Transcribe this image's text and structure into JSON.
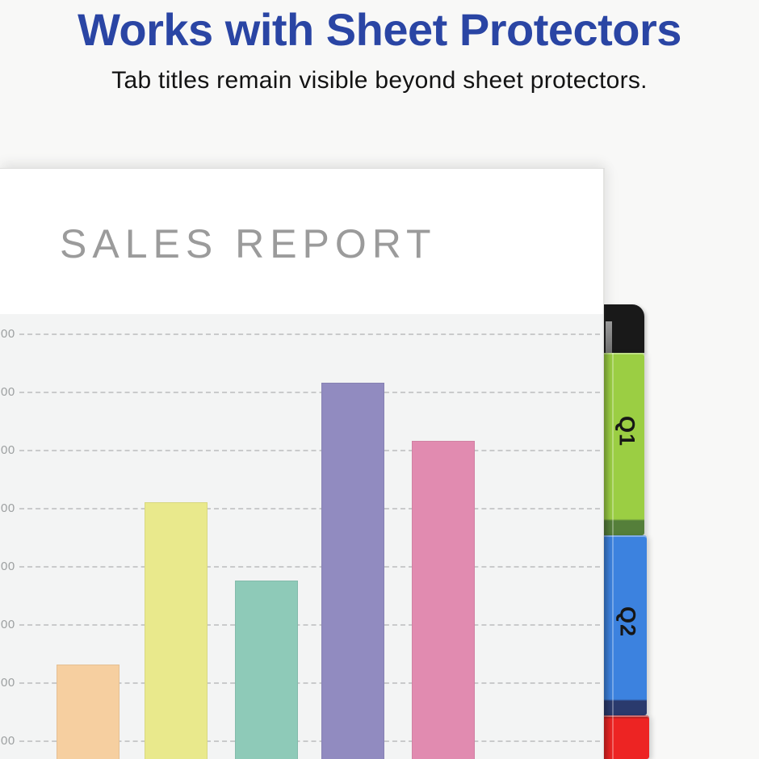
{
  "header": {
    "title": "Works with Sheet Protectors",
    "subtitle": "Tab titles remain visible beyond sheet protectors."
  },
  "document": {
    "title": "SALES REPORT"
  },
  "chart_data": {
    "type": "bar",
    "title": "SALES REPORT",
    "values": [
      230,
      510,
      375,
      715,
      615
    ],
    "bar_colors": [
      "#f6cfa0",
      "#e9e98c",
      "#8ecab8",
      "#918bc0",
      "#e18bb0"
    ],
    "yticks_visible": [
      "00",
      "00",
      "00",
      "00",
      "00",
      "00",
      "00",
      "00"
    ],
    "ylim": [
      0,
      800
    ],
    "grid": "horizontal-dashed",
    "legend": "none",
    "xlabel": "",
    "ylabel": ""
  },
  "tabs": [
    {
      "label": "Q1",
      "color": "#9bce43",
      "band_color": "#557f3a"
    },
    {
      "label": "Q2",
      "color": "#3c82df",
      "band_color": "#2a3a6d"
    },
    {
      "label": "",
      "color": "#ed2423",
      "band_color": "#b61f1f"
    }
  ],
  "colors": {
    "background": "#f8f8f7",
    "headline": "#2a45a4",
    "subtitle": "#131313",
    "report_title": "#9b9b9b",
    "paper": "#ffffff",
    "chart_bg": "#f3f4f4",
    "gridline": "#c9cacb",
    "tick_text": "#9da0a1",
    "binder": "#191919"
  }
}
